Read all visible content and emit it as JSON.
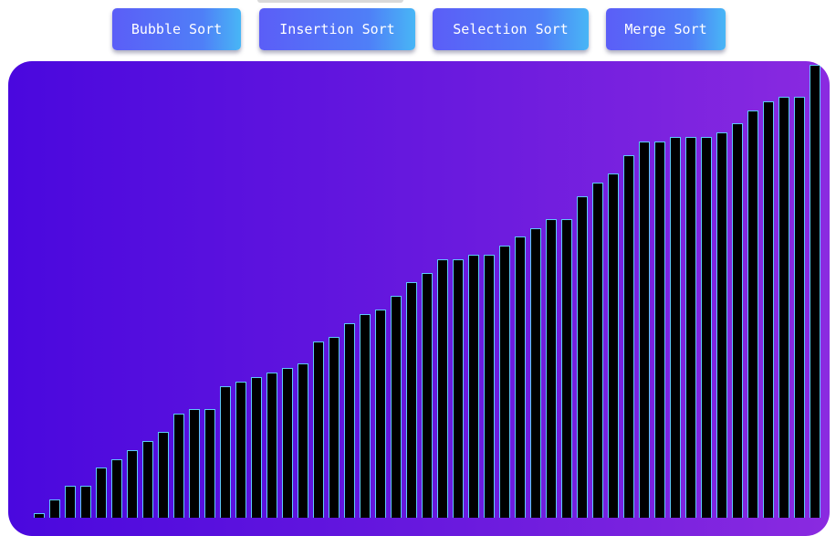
{
  "toolbar": {
    "buttons": [
      {
        "id": "bubble",
        "label": "Bubble Sort"
      },
      {
        "id": "insertion",
        "label": "Insertion Sort"
      },
      {
        "id": "selection",
        "label": "Selection Sort"
      },
      {
        "id": "merge",
        "label": "Merge Sort"
      }
    ]
  },
  "colors": {
    "button_gradient_start": "#5b5ef7",
    "button_gradient_end": "#48b6f6",
    "panel_gradient_start": "#4a08de",
    "panel_gradient_end": "#8a2ae0",
    "bar_fill": "#000000",
    "bar_outline": "#5ec8f8"
  },
  "bars": {
    "max_value": 100,
    "values": [
      1,
      4,
      7,
      7,
      11,
      13,
      15,
      17,
      19,
      23,
      24,
      24,
      29,
      30,
      31,
      32,
      33,
      34,
      39,
      40,
      43,
      45,
      46,
      49,
      52,
      54,
      57,
      57,
      58,
      58,
      60,
      62,
      64,
      66,
      66,
      71,
      74,
      76,
      80,
      83,
      83,
      84,
      84,
      84,
      85,
      87,
      90,
      92,
      93,
      93,
      100
    ]
  }
}
